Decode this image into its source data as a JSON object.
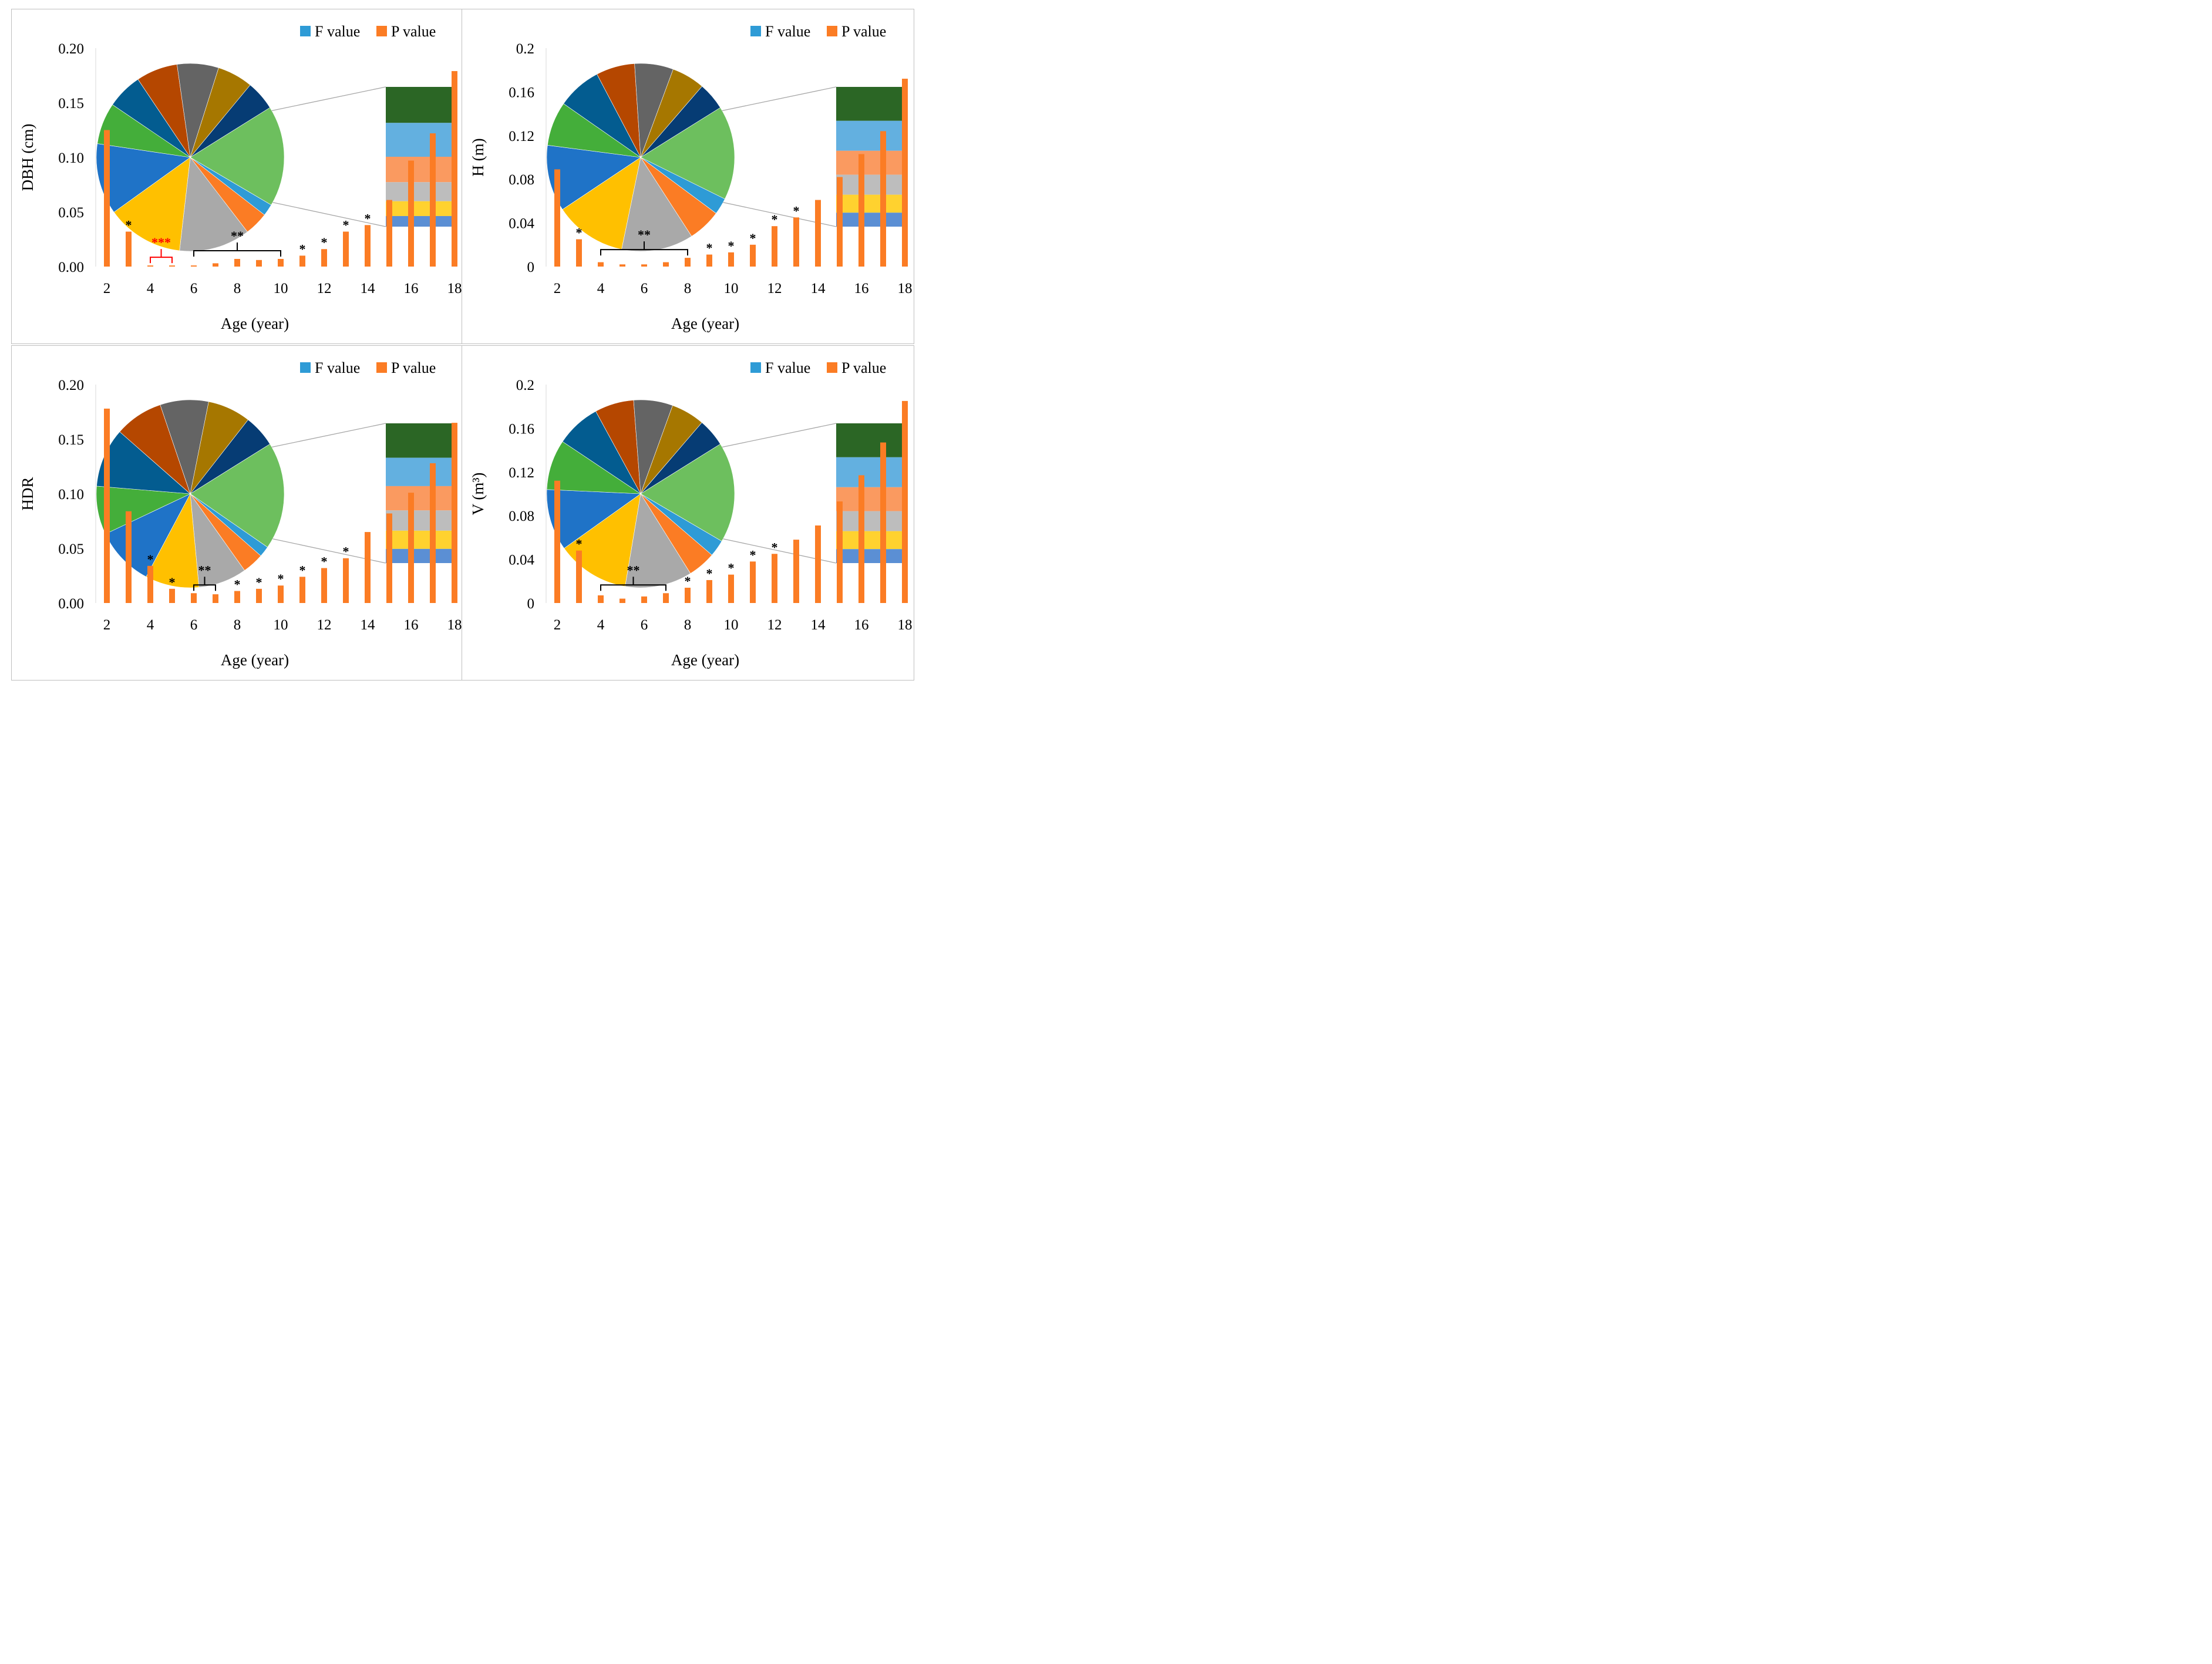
{
  "legend": {
    "f_label": "F value",
    "p_label": "P value",
    "f_color": "#2e9bd6",
    "p_color": "#fb7c24"
  },
  "palette": {
    "slices": [
      "#6dbf5e",
      "#2e9bd6",
      "#fb7c24",
      "#a9a9a9",
      "#ffc000",
      "#1f73c7",
      "#44ae3a",
      "#035c90",
      "#b54700",
      "#646464",
      "#a67700",
      "#063c74"
    ],
    "stack": [
      "#2b6625",
      "#63b0e0",
      "#fa9a60",
      "#bdbdbd",
      "#ffd22f",
      "#5b8fd4"
    ],
    "connector": "#a6a6a6",
    "bracket_black": "#000000",
    "bracket_red": "#ff0000"
  },
  "chart_data": [
    {
      "type": "bar",
      "title": "",
      "xlabel": "Age (year)",
      "ylabel": "DBH (cm)",
      "ylim": [
        0,
        0.2
      ],
      "y_ticks": [
        "0.00",
        "0.05",
        "0.10",
        "0.15",
        "0.20"
      ],
      "x_ticks": [
        "2",
        "4",
        "6",
        "8",
        "10",
        "12",
        "14",
        "16",
        "18"
      ],
      "x": [
        2,
        3,
        4,
        5,
        6,
        7,
        8,
        9,
        10,
        11,
        12,
        13,
        14,
        15,
        16,
        17,
        18
      ],
      "series": [
        {
          "name": "P value",
          "values": [
            0.125,
            0.032,
            0.001,
            0.001,
            0.001,
            0.003,
            0.007,
            0.006,
            0.007,
            0.01,
            0.016,
            0.032,
            0.038,
            0.061,
            0.097,
            0.122,
            0.179
          ]
        }
      ],
      "pie_slices": [
        17,
        2,
        4,
        12,
        13,
        12,
        7,
        6,
        7,
        7,
        6,
        5
      ],
      "stack_shares": [
        17,
        16,
        12,
        9,
        7,
        5
      ],
      "annotations": [
        {
          "text": "*",
          "x": 3
        },
        {
          "text": "***",
          "x": 4.5,
          "from": 4,
          "to": 5,
          "color": "red"
        },
        {
          "text": "**",
          "x": 8,
          "from": 6,
          "to": 10
        },
        {
          "text": "*",
          "x": 11
        },
        {
          "text": "*",
          "x": 12
        },
        {
          "text": "*",
          "x": 13
        },
        {
          "text": "*",
          "x": 14
        }
      ]
    },
    {
      "type": "bar",
      "title": "",
      "xlabel": "Age (year)",
      "ylabel": "H (m)",
      "ylim": [
        0,
        0.2
      ],
      "y_ticks": [
        "0",
        "0.04",
        "0.08",
        "0.12",
        "0.16",
        "0.2"
      ],
      "x_ticks": [
        "2",
        "4",
        "6",
        "8",
        "10",
        "12",
        "14",
        "16",
        "18"
      ],
      "x": [
        2,
        3,
        4,
        5,
        6,
        7,
        8,
        9,
        10,
        11,
        12,
        13,
        14,
        15,
        16,
        17,
        18
      ],
      "series": [
        {
          "name": "P value",
          "values": [
            0.089,
            0.025,
            0.004,
            0.002,
            0.002,
            0.004,
            0.008,
            0.011,
            0.013,
            0.02,
            0.037,
            0.045,
            0.061,
            0.082,
            0.103,
            0.124,
            0.172
          ]
        }
      ],
      "pie_slices": [
        17,
        3,
        6,
        13,
        13,
        12,
        8,
        8,
        7,
        7,
        6,
        5
      ],
      "stack_shares": [
        17,
        15,
        12,
        10,
        9,
        7
      ],
      "annotations": [
        {
          "text": "*",
          "x": 3
        },
        {
          "text": "**",
          "x": 6,
          "from": 4,
          "to": 8
        },
        {
          "text": "*",
          "x": 9
        },
        {
          "text": "*",
          "x": 10
        },
        {
          "text": "*",
          "x": 11
        },
        {
          "text": "*",
          "x": 12
        },
        {
          "text": "*",
          "x": 13
        }
      ]
    },
    {
      "type": "bar",
      "title": "",
      "xlabel": "Age (year)",
      "ylabel": "HDR",
      "ylim": [
        0,
        0.2
      ],
      "y_ticks": [
        "0.00",
        "0.05",
        "0.10",
        "0.15",
        "0.20"
      ],
      "x_ticks": [
        "2",
        "4",
        "6",
        "8",
        "10",
        "12",
        "14",
        "16",
        "18"
      ],
      "x": [
        2,
        3,
        4,
        5,
        6,
        7,
        8,
        9,
        10,
        11,
        12,
        13,
        14,
        15,
        16,
        17,
        18
      ],
      "series": [
        {
          "name": "P value",
          "values": [
            0.178,
            0.084,
            0.034,
            0.013,
            0.009,
            0.008,
            0.011,
            0.013,
            0.016,
            0.024,
            0.032,
            0.041,
            0.065,
            0.082,
            0.101,
            0.128,
            0.165
          ]
        }
      ],
      "pie_slices": [
        20,
        2,
        4,
        9,
        10,
        11,
        9,
        11,
        9,
        9,
        8,
        6
      ],
      "stack_shares": [
        17,
        14,
        12,
        10,
        9,
        7
      ],
      "annotations": [
        {
          "text": "*",
          "x": 4
        },
        {
          "text": "*",
          "x": 5
        },
        {
          "text": "**",
          "x": 6.5,
          "from": 6,
          "to": 7
        },
        {
          "text": "*",
          "x": 8
        },
        {
          "text": "*",
          "x": 9
        },
        {
          "text": "*",
          "x": 10
        },
        {
          "text": "*",
          "x": 11
        },
        {
          "text": "*",
          "x": 12
        },
        {
          "text": "*",
          "x": 13
        }
      ]
    },
    {
      "type": "bar",
      "title": "",
      "xlabel": "Age (year)",
      "ylabel": "V (m³)",
      "ylim": [
        0,
        0.2
      ],
      "y_ticks": [
        "0",
        "0.04",
        "0.08",
        "0.12",
        "0.16",
        "0.2"
      ],
      "x_ticks": [
        "2",
        "4",
        "6",
        "8",
        "10",
        "12",
        "14",
        "16",
        "18"
      ],
      "x": [
        2,
        3,
        4,
        5,
        6,
        7,
        8,
        9,
        10,
        11,
        12,
        13,
        14,
        15,
        16,
        17,
        18
      ],
      "series": [
        {
          "name": "P value",
          "values": [
            0.112,
            0.048,
            0.007,
            0.004,
            0.006,
            0.009,
            0.014,
            0.021,
            0.026,
            0.038,
            0.045,
            0.058,
            0.071,
            0.093,
            0.117,
            0.147,
            0.185
          ]
        }
      ],
      "pie_slices": [
        18,
        3,
        5,
        12,
        13,
        11,
        9,
        8,
        7,
        7,
        6,
        5
      ],
      "stack_shares": [
        17,
        15,
        12,
        10,
        9,
        7
      ],
      "annotations": [
        {
          "text": "*",
          "x": 3
        },
        {
          "text": "**",
          "x": 5.5,
          "from": 4,
          "to": 7
        },
        {
          "text": "*",
          "x": 8
        },
        {
          "text": "*",
          "x": 9
        },
        {
          "text": "*",
          "x": 10
        },
        {
          "text": "*",
          "x": 11
        },
        {
          "text": "*",
          "x": 12
        }
      ]
    }
  ]
}
